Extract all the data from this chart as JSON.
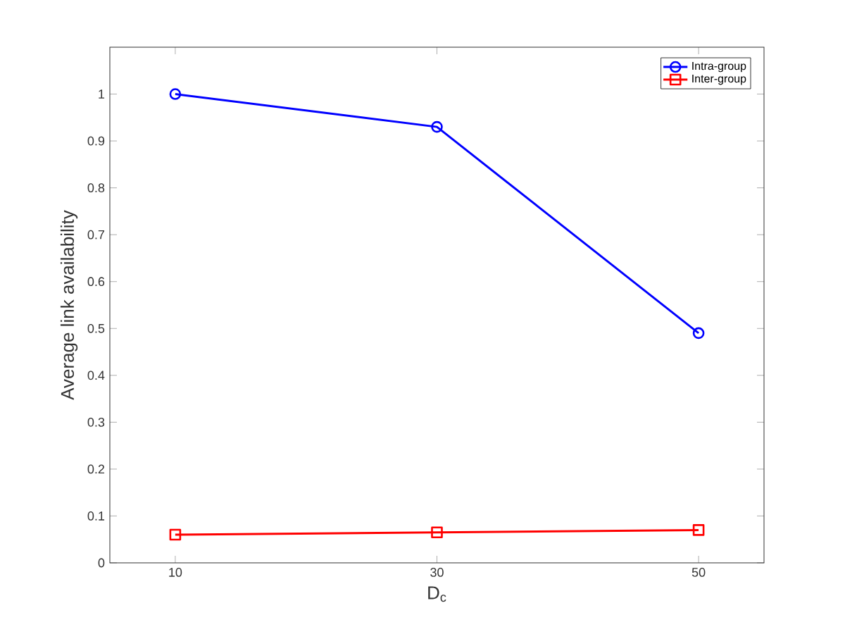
{
  "chart_data": {
    "type": "line",
    "xlabel": "D$_{c}$",
    "ylabel": "Average link availability",
    "x": [
      10,
      30,
      50
    ],
    "series": [
      {
        "name": "Intra-group",
        "color": "#0000ff",
        "marker": "circle",
        "values": [
          1.0,
          0.93,
          0.49
        ]
      },
      {
        "name": "Inter-group",
        "color": "#ff0000",
        "marker": "square",
        "values": [
          0.06,
          0.065,
          0.07
        ]
      }
    ],
    "xlim": [
      5,
      55
    ],
    "ylim": [
      0,
      1.1
    ],
    "xticks": [
      10,
      30,
      50
    ],
    "yticks": [
      0,
      0.1,
      0.2,
      0.3,
      0.4,
      0.5,
      0.6,
      0.7,
      0.8,
      0.9,
      1
    ],
    "legend": "top right",
    "line_style": "solid"
  }
}
